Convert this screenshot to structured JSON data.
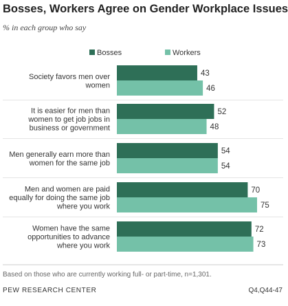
{
  "title": "Bosses, Workers Agree on Gender Workplace Issues",
  "subtitle": "% in each group who say",
  "note": "Based on those who are currently working full- or part-time, n=1,301.",
  "source": "PEW RESEARCH CENTER",
  "question_code": "Q4,Q44-47",
  "colors": {
    "bosses": "#2e6f57",
    "workers": "#74c1a8"
  },
  "chart_data": {
    "type": "bar",
    "orientation": "horizontal",
    "categories": [
      [
        "Society favors men over",
        "women"
      ],
      [
        "It is easier for men than",
        "women to get job jobs in",
        "business or government"
      ],
      [
        "Men generally earn more than",
        "women for the same job"
      ],
      [
        "Men and women are paid",
        "equally for doing the same job",
        "where you work"
      ],
      [
        "Women have the same",
        "opportunities to advance",
        "where you work"
      ]
    ],
    "series": [
      {
        "name": "Bosses",
        "values": [
          43,
          52,
          54,
          70,
          72
        ]
      },
      {
        "name": "Workers",
        "values": [
          46,
          48,
          54,
          75,
          73
        ]
      }
    ],
    "xlim": [
      0,
      100
    ],
    "legend_position": "top",
    "grid": false
  }
}
